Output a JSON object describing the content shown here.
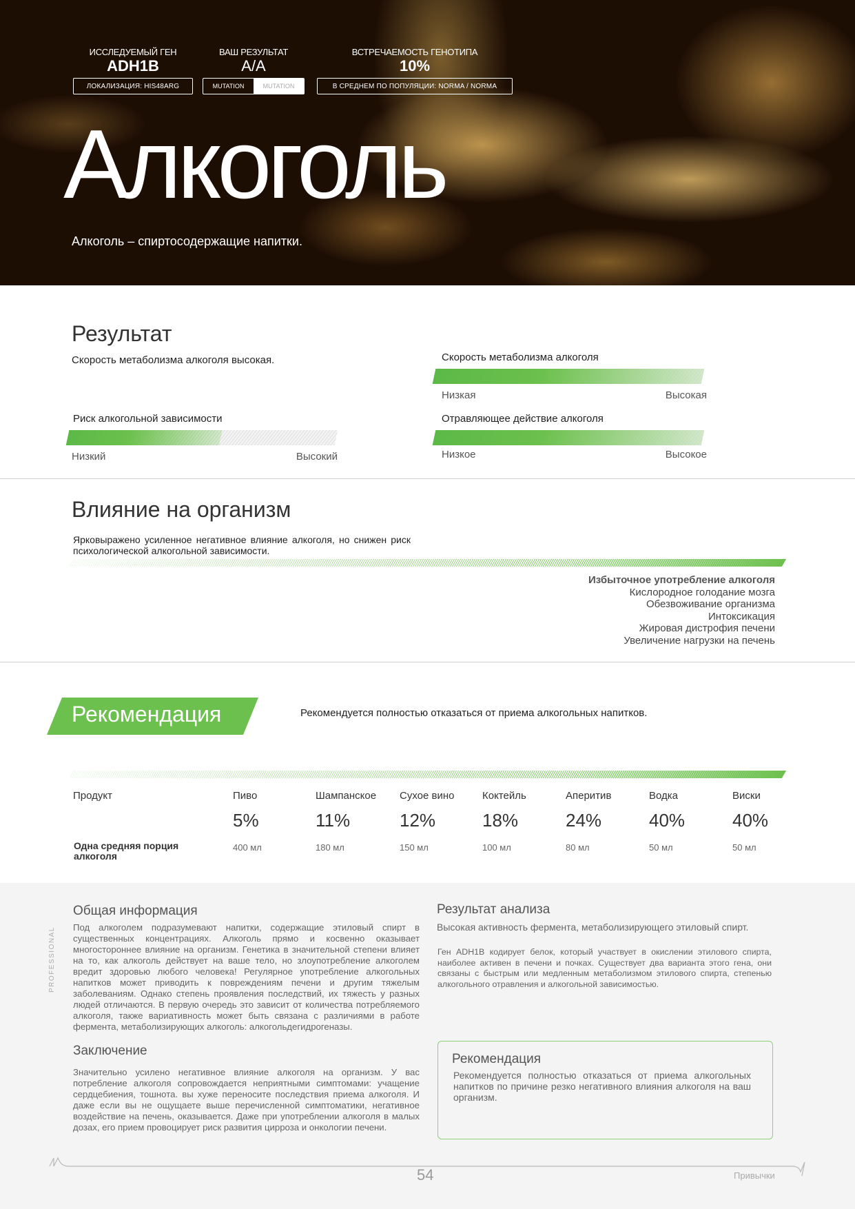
{
  "header": {
    "gene_label": "ИССЛЕДУЕМЫЙ ГЕН",
    "gene_value": "ADH1B",
    "localization": "ЛОКАЛИЗАЦИЯ:  HIS48ARG",
    "result_label": "ВАШ РЕЗУЛЬТАТ",
    "result_value": "A/A",
    "mutation_left": "MUTATION",
    "mutation_right": "MUTATION",
    "freq_label": "ВСТРЕЧАЕМОСТЬ ГЕНОТИПА",
    "freq_value": "10%",
    "freq_note": "В СРЕДНЕМ ПО ПОПУЛЯЦИИ: NORMA / NORMA",
    "title": "Алкоголь",
    "subtitle": "Алкоголь – спиртосодержащие напитки."
  },
  "result": {
    "title": "Результат",
    "summary": "Скорость метаболизма алкоголя высокая.",
    "scales": [
      {
        "label": "Скорость метаболизма алкоголя",
        "low": "Низкая",
        "high": "Высокая",
        "level": 1.0
      },
      {
        "label": "Риск алкогольной зависимости",
        "low": "Низкий",
        "high": "Высокий",
        "level": 0.57
      },
      {
        "label": "Отравляющее действие алкоголя",
        "low": "Низкое",
        "high": "Высокое",
        "level": 1.0
      }
    ],
    "accent": "#6cc04d"
  },
  "influence": {
    "title": "Влияние на организм",
    "text": "Ярковыражено усиленное негативное влияние алкоголя, но снижен риск психологической алкогольной зависимости.",
    "items": [
      "Избыточное употребление алкоголя",
      "Кислородное голодание мозга",
      "Обезвоживание организма",
      "Интоксикация",
      "Жировая дистрофия печени",
      "Увеличение нагрузки на печень"
    ]
  },
  "recommendation": {
    "title": "Рекомендация",
    "text": "Рекомендуется полностью отказаться от приема алкогольных напитков."
  },
  "table": {
    "product_label": "Продукт",
    "portion_label": "Одна средняя порция алкоголя",
    "products": [
      {
        "name": "Пиво",
        "abv": "5%",
        "portion": "400 мл"
      },
      {
        "name": "Шампанское",
        "abv": "11%",
        "portion": "180 мл"
      },
      {
        "name": "Сухое вино",
        "abv": "12%",
        "portion": "150 мл"
      },
      {
        "name": "Коктейль",
        "abv": "18%",
        "portion": "100 мл"
      },
      {
        "name": "Аперитив",
        "abv": "24%",
        "portion": "80 мл"
      },
      {
        "name": "Водка",
        "abv": "40%",
        "portion": "50 мл"
      },
      {
        "name": "Виски",
        "abv": "40%",
        "portion": "50 мл"
      }
    ]
  },
  "info": {
    "side_label": "PROFESSIONAL",
    "general_title": "Общая информация",
    "general_text": "Под алкоголем подразумевают напитки, содержащие этиловый спирт в существенных концентрациях. Алкоголь прямо и косвенно оказывает многостороннее влияние на организм. Генетика в значительной степени влияет на то, как алкоголь действует на ваше тело, но злоупотребление алкоголем вредит здоровью любого человека! Регулярное употребление алкогольных напитков может приводить к повреждениям печени и другим тяжелым заболеваниям. Однако степень проявления последствий, их тяжесть у разных людей отличаются. В первую очередь это зависит от количества потребляемого алкоголя, также вариативность может быть связана с различиями в работе фермента, метаболизирующих алкоголь: алкогольдегидрогеназы.",
    "conclusion_title": "Заключение",
    "conclusion_text": "Значительно усилено негативное влияние алкоголя на организм. У вас потребление алкоголя сопровождается неприятными симптомами: учащение сердцебиения, тошнота. вы хуже переносите последствия приема алкоголя. И даже если вы не ощущаете выше перечисленной симптоматики, негативное воздействие на печень, оказывается. Даже при употреблении алкоголя в малых дозах, его прием провоцирует риск развития цирроза и онкологии печени.",
    "analysis_title": "Результат анализа",
    "analysis_subtitle": "Высокая активность фермента, метаболизирующего этиловый спирт.",
    "analysis_text": "Ген ADH1B кодирует белок, который участвует в окислении этилового спирта, наиболее активен в печени и почках. Существует два варианта этого гена, они связаны с быстрым или медленным метаболизмом этилового спирта, степенью алкогольного отравления и алкогольной зависимостью.",
    "rec_title": "Рекомендация",
    "rec_text": "Рекомендуется полностью отказаться от приема алкогольных напитков по причине резко негативного влияния алкоголя на ваш организм."
  },
  "footer": {
    "page": "54",
    "section": "Привычки"
  }
}
